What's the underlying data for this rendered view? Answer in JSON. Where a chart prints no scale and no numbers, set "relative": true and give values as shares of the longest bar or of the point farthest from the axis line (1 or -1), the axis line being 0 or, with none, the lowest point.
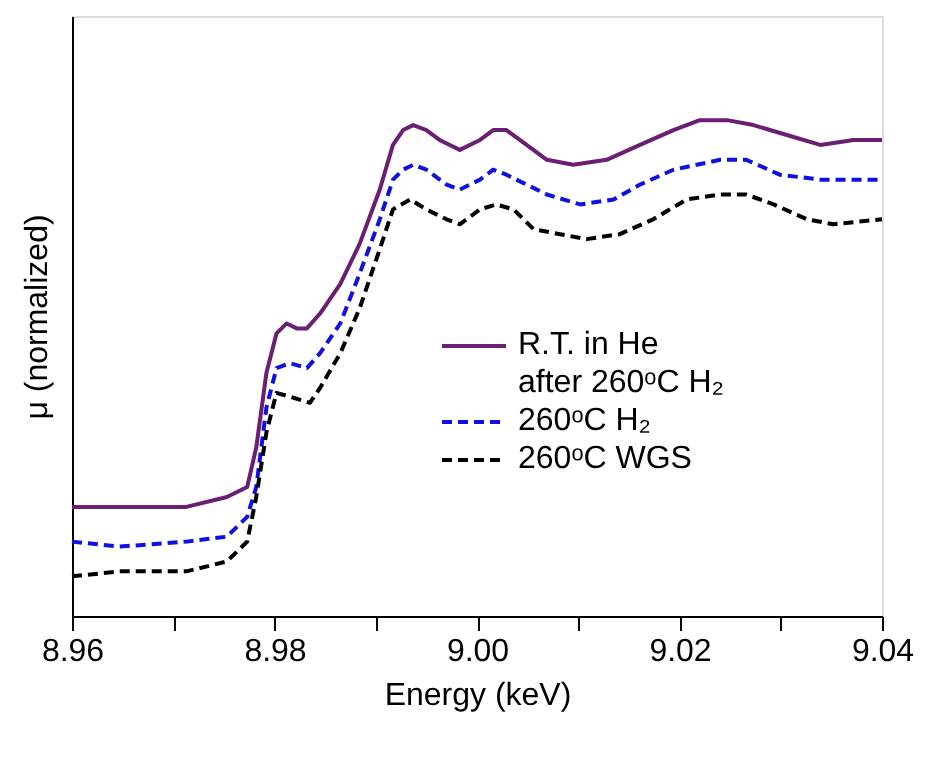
{
  "chart_data": {
    "type": "line",
    "xlabel": "Energy (keV)",
    "ylabel": "μ (normalized)",
    "relative": true,
    "grid": false,
    "legend": "right",
    "tick_labels": "x",
    "marker": "none",
    "xlim": [
      8.96,
      9.04
    ],
    "xticks": [
      8.96,
      {
        "value": 8.97,
        "label": null
      },
      8.98,
      {
        "value": 8.99,
        "label": null
      },
      {
        "value": 9.0,
        "label": "9.00"
      },
      {
        "value": 9.01,
        "label": null
      },
      9.02,
      {
        "value": 9.03,
        "label": null
      },
      9.04
    ],
    "series": [
      {
        "name": "R.T. in He\nafter 260ᵒC H₂",
        "color": "#6b1f72",
        "line_style": "solid",
        "x": [
          8.96,
          8.9647,
          8.9713,
          8.9753,
          8.9773,
          8.9782,
          8.9792,
          8.9802,
          8.9812,
          8.9822,
          8.9832,
          8.9845,
          8.9865,
          8.9884,
          8.9904,
          8.9917,
          8.9927,
          8.9937,
          8.995,
          8.9963,
          8.9983,
          9.0003,
          9.0016,
          9.0029,
          9.0049,
          9.0069,
          9.0095,
          9.0128,
          9.0161,
          9.0194,
          9.022,
          9.0247,
          9.0273,
          9.0306,
          9.0339,
          9.0372,
          9.04
        ],
        "values": [
          0.22,
          0.22,
          0.22,
          0.24,
          0.26,
          0.34,
          0.49,
          0.57,
          0.59,
          0.58,
          0.58,
          0.61,
          0.67,
          0.75,
          0.86,
          0.95,
          0.98,
          0.99,
          0.98,
          0.96,
          0.94,
          0.96,
          0.98,
          0.98,
          0.95,
          0.92,
          0.91,
          0.92,
          0.95,
          0.98,
          1.0,
          1.0,
          0.99,
          0.97,
          0.95,
          0.96,
          0.96
        ]
      },
      {
        "name": "260ᵒC H₂",
        "color": "#1010e0",
        "line_style": "dashed",
        "x": [
          8.96,
          8.9647,
          8.9713,
          8.9753,
          8.9773,
          8.9782,
          8.9792,
          8.9802,
          8.9815,
          8.9832,
          8.9845,
          8.9865,
          8.9884,
          8.9904,
          8.9917,
          8.9927,
          8.9937,
          8.995,
          8.997,
          8.9983,
          9.0003,
          9.0016,
          9.0029,
          9.0049,
          9.0069,
          9.0102,
          9.0135,
          9.0161,
          9.0194,
          9.024,
          9.0266,
          9.0299,
          9.0339,
          9.04
        ],
        "values": [
          0.15,
          0.14,
          0.15,
          0.16,
          0.2,
          0.26,
          0.42,
          0.5,
          0.51,
          0.5,
          0.53,
          0.59,
          0.69,
          0.8,
          0.88,
          0.9,
          0.91,
          0.9,
          0.87,
          0.86,
          0.88,
          0.9,
          0.89,
          0.87,
          0.85,
          0.83,
          0.84,
          0.87,
          0.9,
          0.92,
          0.92,
          0.89,
          0.88,
          0.88
        ]
      },
      {
        "name": "260ᵒC WGS",
        "color": "#000000",
        "line_style": "dashed",
        "x": [
          8.96,
          8.9647,
          8.9713,
          8.9753,
          8.9773,
          8.9782,
          8.9792,
          8.9802,
          8.9819,
          8.9835,
          8.9845,
          8.9865,
          8.9884,
          8.9904,
          8.9917,
          8.9934,
          8.995,
          8.997,
          8.9983,
          9.0003,
          9.0019,
          9.0036,
          9.0056,
          9.0082,
          9.0108,
          9.0141,
          9.0174,
          9.0207,
          9.024,
          9.0266,
          9.0293,
          9.0326,
          9.0352,
          9.04
        ],
        "values": [
          0.08,
          0.09,
          0.09,
          0.11,
          0.15,
          0.24,
          0.37,
          0.45,
          0.44,
          0.43,
          0.46,
          0.53,
          0.62,
          0.74,
          0.82,
          0.84,
          0.82,
          0.8,
          0.79,
          0.82,
          0.83,
          0.82,
          0.78,
          0.77,
          0.76,
          0.77,
          0.8,
          0.84,
          0.85,
          0.85,
          0.83,
          0.8,
          0.79,
          0.8
        ]
      }
    ]
  }
}
